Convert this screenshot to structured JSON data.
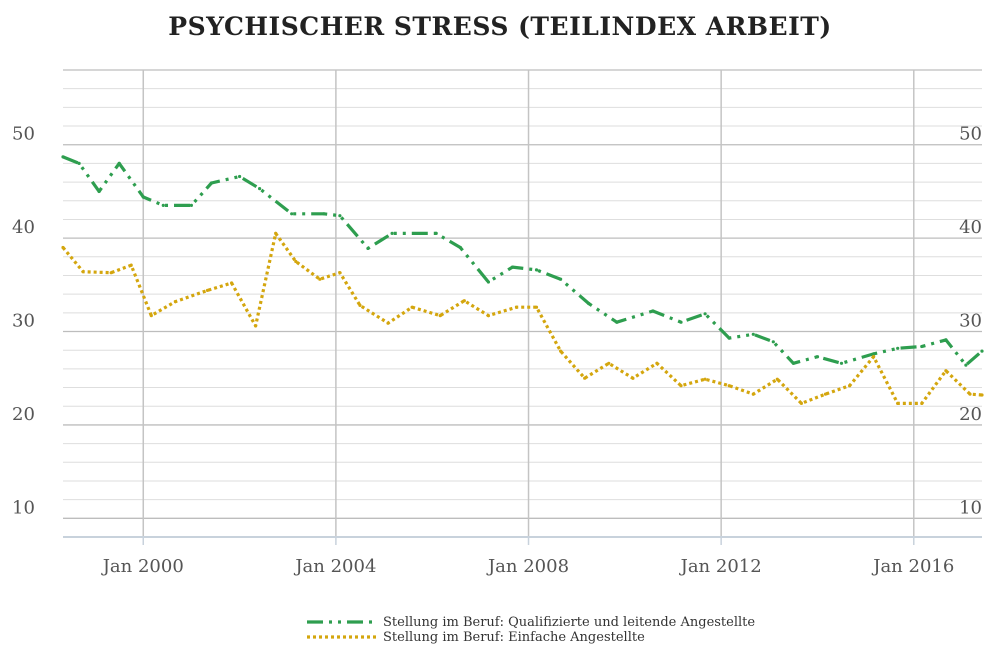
{
  "chart_data": {
    "type": "line",
    "title": "PSYCHISCHER STRESS (TEILINDEX ARBEIT)",
    "xlabel": "",
    "ylabel": "",
    "ylim": [
      8,
      58
    ],
    "x_range": [
      "1998-05",
      "2017-06"
    ],
    "x_ticks": [
      {
        "date": "2000-01",
        "label": "Jan 2000"
      },
      {
        "date": "2004-01",
        "label": "Jan 2004"
      },
      {
        "date": "2008-01",
        "label": "Jan 2008"
      },
      {
        "date": "2012-01",
        "label": "Jan 2012"
      },
      {
        "date": "2016-01",
        "label": "Jan 2016"
      }
    ],
    "y_ticks": [
      10,
      20,
      30,
      40,
      50
    ],
    "y_tick_labels": [
      "10",
      "20",
      "30",
      "40",
      "50"
    ],
    "grid": true,
    "legend_position": "bottom",
    "series": [
      {
        "name": "Stellung im Beruf: Qualifizierte und leitende Angestellte",
        "color": "#2e9e4f",
        "style": "dash-dot-dot",
        "points": [
          [
            "1998-05",
            48.7
          ],
          [
            "1998-09",
            48.0
          ],
          [
            "1999-02",
            45.0
          ],
          [
            "1999-07",
            48.0
          ],
          [
            "2000-01",
            44.4
          ],
          [
            "2000-06",
            43.5
          ],
          [
            "2001-01",
            43.5
          ],
          [
            "2001-06",
            45.9
          ],
          [
            "2002-01",
            46.6
          ],
          [
            "2002-06",
            45.3
          ],
          [
            "2003-02",
            42.6
          ],
          [
            "2003-10",
            42.6
          ],
          [
            "2004-02",
            42.4
          ],
          [
            "2004-09",
            38.9
          ],
          [
            "2005-03",
            40.5
          ],
          [
            "2006-02",
            40.5
          ],
          [
            "2006-08",
            39.0
          ],
          [
            "2007-03",
            35.3
          ],
          [
            "2007-09",
            36.9
          ],
          [
            "2008-03",
            36.6
          ],
          [
            "2008-09",
            35.6
          ],
          [
            "2009-04",
            33.0
          ],
          [
            "2009-11",
            31.0
          ],
          [
            "2010-08",
            32.2
          ],
          [
            "2011-03",
            31.0
          ],
          [
            "2011-09",
            31.9
          ],
          [
            "2012-03",
            29.3
          ],
          [
            "2012-09",
            29.7
          ],
          [
            "2013-02",
            28.9
          ],
          [
            "2013-07",
            26.6
          ],
          [
            "2014-01",
            27.3
          ],
          [
            "2014-07",
            26.6
          ],
          [
            "2015-03",
            27.6
          ],
          [
            "2015-09",
            28.2
          ],
          [
            "2016-03",
            28.4
          ],
          [
            "2016-09",
            29.1
          ],
          [
            "2017-02",
            26.4
          ],
          [
            "2017-06",
            27.9
          ]
        ]
      },
      {
        "name": "Stellung im Beruf: Einfache Angestellte",
        "color": "#d4a60e",
        "style": "dotted",
        "points": [
          [
            "1998-05",
            39.0
          ],
          [
            "1998-10",
            36.4
          ],
          [
            "1999-05",
            36.3
          ],
          [
            "1999-10",
            37.1
          ],
          [
            "2000-03",
            31.7
          ],
          [
            "2000-09",
            33.2
          ],
          [
            "2001-05",
            34.4
          ],
          [
            "2001-11",
            35.2
          ],
          [
            "2002-05",
            30.6
          ],
          [
            "2002-10",
            40.5
          ],
          [
            "2003-03",
            37.5
          ],
          [
            "2003-09",
            35.6
          ],
          [
            "2004-02",
            36.3
          ],
          [
            "2004-07",
            32.8
          ],
          [
            "2005-02",
            30.9
          ],
          [
            "2005-08",
            32.6
          ],
          [
            "2006-03",
            31.7
          ],
          [
            "2006-09",
            33.3
          ],
          [
            "2007-03",
            31.7
          ],
          [
            "2007-10",
            32.6
          ],
          [
            "2008-03",
            32.6
          ],
          [
            "2008-09",
            27.9
          ],
          [
            "2009-03",
            25.0
          ],
          [
            "2009-09",
            26.6
          ],
          [
            "2010-03",
            25.0
          ],
          [
            "2010-09",
            26.6
          ],
          [
            "2011-03",
            24.2
          ],
          [
            "2011-09",
            24.9
          ],
          [
            "2012-03",
            24.2
          ],
          [
            "2012-09",
            23.3
          ],
          [
            "2013-03",
            24.9
          ],
          [
            "2013-09",
            22.3
          ],
          [
            "2014-03",
            23.3
          ],
          [
            "2014-09",
            24.2
          ],
          [
            "2015-03",
            27.3
          ],
          [
            "2015-09",
            22.3
          ],
          [
            "2016-03",
            22.3
          ],
          [
            "2016-09",
            25.8
          ],
          [
            "2017-03",
            23.3
          ],
          [
            "2017-06",
            23.2
          ]
        ]
      }
    ]
  }
}
